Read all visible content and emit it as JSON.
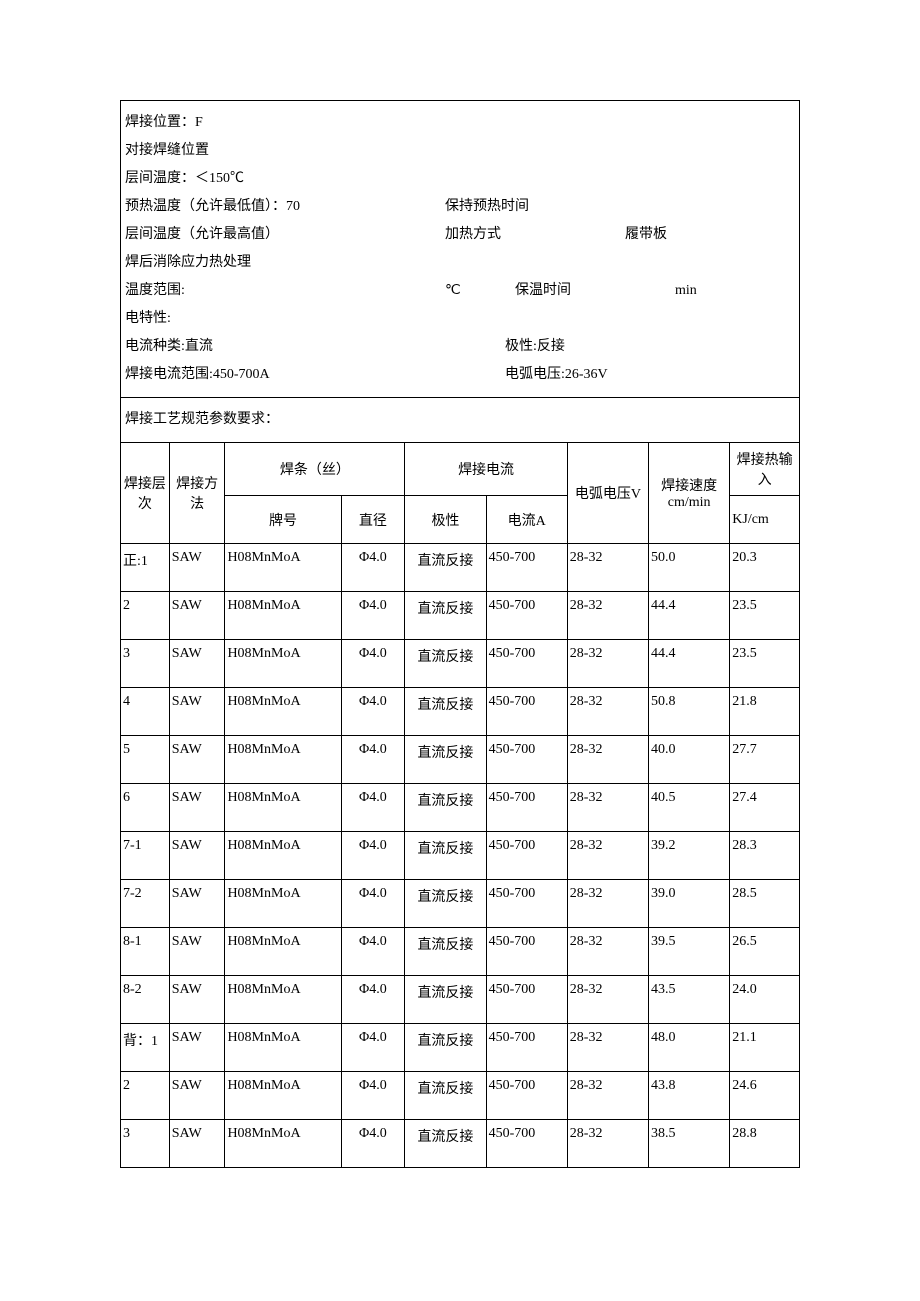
{
  "info": {
    "weld_position_label": "焊接位置：",
    "weld_position_value": "F",
    "butt_weld_position_label": "对接焊缝位置",
    "interlayer_temp_label": "层间温度：",
    "interlayer_temp_value": "＜150℃",
    "preheat_temp_label": "预热温度（允许最低值）：",
    "preheat_temp_value": "70",
    "preheat_hold_label": "保持预热时间",
    "interlayer_max_label": "层间温度（允许最高值）",
    "heating_method_label": "加热方式",
    "heating_method_value": "履带板",
    "pwht_label": "焊后消除应力热处理",
    "temp_range_label": "温度范围:",
    "temp_unit": "℃",
    "hold_time_label": "保温时间",
    "hold_time_unit": "min",
    "electrical_label": "电特性:",
    "current_type_label": "电流种类:",
    "current_type_value": "直流",
    "polarity_label": "极性:",
    "polarity_value": "反接",
    "current_range_label": "焊接电流范围:",
    "current_range_value": "450-700A",
    "arc_voltage_label": "电弧电压:",
    "arc_voltage_value": "26-36V"
  },
  "subtitle": "焊接工艺规范参数要求：",
  "headers": {
    "layer": "焊接层次",
    "method": "焊接方法",
    "wire": "焊条（丝）",
    "brand": "牌号",
    "diameter": "直径",
    "weld_current": "焊接电流",
    "polarity": "极性",
    "current_a": "电流A",
    "arc_voltage": "电弧电压V",
    "weld_speed": "焊接速度cm/min",
    "heat_input": "焊接热输入",
    "heat_unit": "KJ/cm"
  },
  "rows": [
    {
      "layer": "正:1",
      "method": "SAW",
      "brand": "H08MnMoA",
      "dia": "Φ4.0",
      "polar": "直流反接",
      "current": "450-700",
      "voltage": "28-32",
      "speed": "50.0",
      "heat": "20.3"
    },
    {
      "layer": "2",
      "method": "SAW",
      "brand": "H08MnMoA",
      "dia": "Φ4.0",
      "polar": "直流反接",
      "current": "450-700",
      "voltage": "28-32",
      "speed": "44.4",
      "heat": "23.5"
    },
    {
      "layer": "3",
      "method": "SAW",
      "brand": "H08MnMoA",
      "dia": "Φ4.0",
      "polar": "直流反接",
      "current": "450-700",
      "voltage": "28-32",
      "speed": "44.4",
      "heat": "23.5"
    },
    {
      "layer": "4",
      "method": "SAW",
      "brand": "H08MnMoA",
      "dia": "Φ4.0",
      "polar": "直流反接",
      "current": "450-700",
      "voltage": "28-32",
      "speed": "50.8",
      "heat": "21.8"
    },
    {
      "layer": "5",
      "method": "SAW",
      "brand": "H08MnMoA",
      "dia": "Φ4.0",
      "polar": "直流反接",
      "current": "450-700",
      "voltage": "28-32",
      "speed": "40.0",
      "heat": "27.7"
    },
    {
      "layer": "6",
      "method": "SAW",
      "brand": "H08MnMoA",
      "dia": "Φ4.0",
      "polar": "直流反接",
      "current": "450-700",
      "voltage": "28-32",
      "speed": "40.5",
      "heat": "27.4"
    },
    {
      "layer": "7-1",
      "method": "SAW",
      "brand": "H08MnMoA",
      "dia": "Φ4.0",
      "polar": "直流反接",
      "current": "450-700",
      "voltage": "28-32",
      "speed": "39.2",
      "heat": "28.3"
    },
    {
      "layer": "7-2",
      "method": "SAW",
      "brand": "H08MnMoA",
      "dia": "Φ4.0",
      "polar": "直流反接",
      "current": "450-700",
      "voltage": "28-32",
      "speed": "39.0",
      "heat": "28.5"
    },
    {
      "layer": "8-1",
      "method": "SAW",
      "brand": "H08MnMoA",
      "dia": "Φ4.0",
      "polar": "直流反接",
      "current": "450-700",
      "voltage": "28-32",
      "speed": "39.5",
      "heat": "26.5"
    },
    {
      "layer": "8-2",
      "method": "SAW",
      "brand": "H08MnMoA",
      "dia": "Φ4.0",
      "polar": "直流反接",
      "current": "450-700",
      "voltage": "28-32",
      "speed": "43.5",
      "heat": "24.0"
    },
    {
      "layer": "背：1",
      "method": "SAW",
      "brand": "H08MnMoA",
      "dia": "Φ4.0",
      "polar": "直流反接",
      "current": "450-700",
      "voltage": "28-32",
      "speed": "48.0",
      "heat": "21.1"
    },
    {
      "layer": "2",
      "method": "SAW",
      "brand": "H08MnMoA",
      "dia": "Φ4.0",
      "polar": "直流反接",
      "current": "450-700",
      "voltage": "28-32",
      "speed": "43.8",
      "heat": "24.6"
    },
    {
      "layer": "3",
      "method": "SAW",
      "brand": "H08MnMoA",
      "dia": "Φ4.0",
      "polar": "直流反接",
      "current": "450-700",
      "voltage": "28-32",
      "speed": "38.5",
      "heat": "28.8"
    }
  ]
}
